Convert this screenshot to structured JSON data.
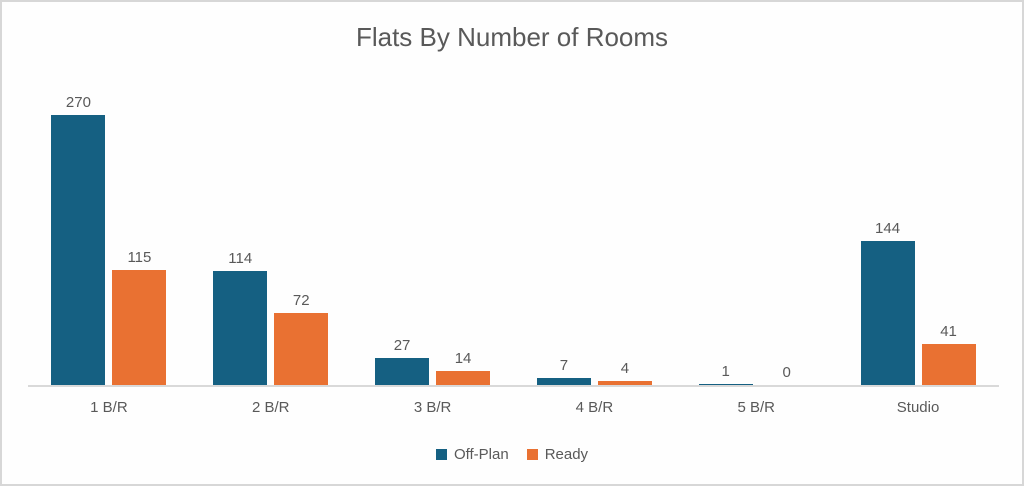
{
  "frame": {
    "background": "#fefefe",
    "border_color": "#d7d7d7",
    "text_color": "#595959",
    "axis_line_color": "#d9d9d9"
  },
  "chart_data": {
    "type": "bar",
    "title": "Flats By Number of Rooms",
    "categories": [
      "1 B/R",
      "2 B/R",
      "3 B/R",
      "4 B/R",
      "5 B/R",
      "Studio"
    ],
    "series": [
      {
        "name": "Off-Plan",
        "color": "#156082",
        "values": [
          270,
          114,
          27,
          7,
          1,
          144
        ]
      },
      {
        "name": "Ready",
        "color": "#E97132",
        "values": [
          115,
          72,
          14,
          4,
          0,
          41
        ]
      }
    ],
    "xlabel": "",
    "ylabel": "",
    "ylim": [
      0,
      300
    ],
    "grid": false,
    "data_labels": true,
    "legend_position": "bottom"
  }
}
